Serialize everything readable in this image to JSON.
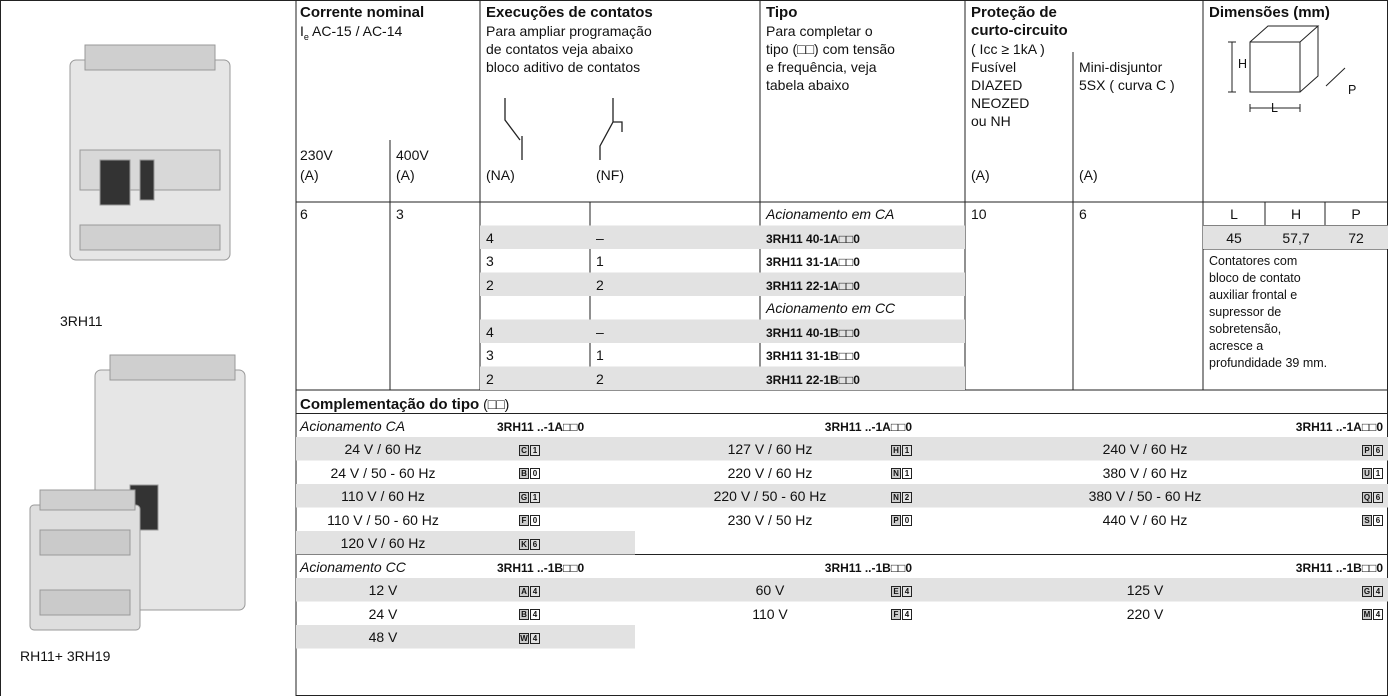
{
  "products": [
    {
      "caption": "3RH11"
    },
    {
      "caption": "RH11+ 3RH19"
    }
  ],
  "header": {
    "current": {
      "title": "Corrente nominal",
      "subtitle": {
        "symbol": "I",
        "subscript": "e",
        "text": " AC-15 / AC-14"
      },
      "col_230": "230V",
      "col_400": "400V",
      "unit_230": "(A)",
      "unit_400": "(A)"
    },
    "contacts": {
      "title": "Execuções de contatos",
      "note": [
        "Para ampliar programação",
        "de contatos veja abaixo",
        "bloco aditivo de contatos"
      ],
      "no": "(NA)",
      "nc": "(NF)"
    },
    "type": {
      "title": "Tipo",
      "note": [
        "Para completar o",
        "tipo (□□) com tensão",
        "e frequência, veja",
        "tabela abaixo"
      ]
    },
    "protection": {
      "title": [
        "Proteção de",
        "curto-circuito"
      ],
      "condition": "( Icc ≥ 1kA )",
      "fuse": [
        "Fusível",
        "DIAZED",
        "NEOZED",
        "ou NH"
      ],
      "breaker": [
        "Mini-disjuntor",
        "5SX ( curva C )"
      ],
      "fuse_unit": "(A)",
      "breaker_unit": "(A)"
    },
    "dimensions": {
      "title": "Dimensões (mm)",
      "diagram": {
        "h": "H",
        "l": "L",
        "p": "P"
      }
    }
  },
  "ratings": {
    "i_230": "6",
    "i_400": "3",
    "fuse": "10",
    "breaker": "6"
  },
  "contact_rows": [
    {
      "group": "Acionamento em CA"
    },
    {
      "na": "4",
      "nf": "–",
      "type": "3RH11 40-1A□□0"
    },
    {
      "na": "3",
      "nf": "1",
      "type": "3RH11 31-1A□□0"
    },
    {
      "na": "2",
      "nf": "2",
      "type": "3RH11 22-1A□□0"
    },
    {
      "group": "Acionamento em CC"
    },
    {
      "na": "4",
      "nf": "–",
      "type": "3RH11 40-1B□□0"
    },
    {
      "na": "3",
      "nf": "1",
      "type": "3RH11 31-1B□□0"
    },
    {
      "na": "2",
      "nf": "2",
      "type": "3RH11 22-1B□□0"
    }
  ],
  "dimensions": {
    "labels": [
      "L",
      "H",
      "P"
    ],
    "values": [
      "45",
      "57,7",
      "72"
    ],
    "note": [
      "Contatores com",
      "bloco de contato",
      "auxiliar frontal e",
      "supressor de",
      "sobretensão,",
      "acresce a",
      "profundidade 39 mm."
    ]
  },
  "complement": {
    "title": "Complementação do tipo",
    "suffix": " (□□)"
  },
  "voltage_groups": [
    {
      "label": "Acionamento CA",
      "code_header": [
        "3RH11 ..-1A□□0",
        "3RH11 ..-1A□□0",
        "3RH11 ..-1A□□0"
      ],
      "columns": [
        [
          {
            "voltage": "24 V / 60 Hz",
            "code": [
              "C",
              "1"
            ]
          },
          {
            "voltage": "24 V / 50 - 60 Hz",
            "code": [
              "B",
              "0"
            ]
          },
          {
            "voltage": "110 V / 60 Hz",
            "code": [
              "G",
              "1"
            ]
          },
          {
            "voltage": "110 V / 50 - 60 Hz",
            "code": [
              "F",
              "0"
            ]
          },
          {
            "voltage": "120 V / 60 Hz",
            "code": [
              "K",
              "6"
            ]
          }
        ],
        [
          {
            "voltage": "127 V / 60 Hz",
            "code": [
              "H",
              "1"
            ]
          },
          {
            "voltage": "220 V / 60 Hz",
            "code": [
              "N",
              "1"
            ]
          },
          {
            "voltage": "220 V / 50 - 60 Hz",
            "code": [
              "N",
              "2"
            ]
          },
          {
            "voltage": "230 V / 50 Hz",
            "code": [
              "P",
              "0"
            ]
          }
        ],
        [
          {
            "voltage": "240 V / 60 Hz",
            "code": [
              "P",
              "6"
            ]
          },
          {
            "voltage": "380 V / 60 Hz",
            "code": [
              "U",
              "1"
            ]
          },
          {
            "voltage": "380 V / 50 - 60 Hz",
            "code": [
              "Q",
              "6"
            ]
          },
          {
            "voltage": "440 V / 60 Hz",
            "code": [
              "S",
              "6"
            ]
          }
        ]
      ]
    },
    {
      "label": "Acionamento CC",
      "code_header": [
        "3RH11 ..-1B□□0",
        "3RH11 ..-1B□□0",
        "3RH11 ..-1B□□0"
      ],
      "columns": [
        [
          {
            "voltage": "12 V",
            "code": [
              "A",
              "4"
            ]
          },
          {
            "voltage": "24 V",
            "code": [
              "B",
              "4"
            ]
          },
          {
            "voltage": "48 V",
            "code": [
              "W",
              "4"
            ]
          }
        ],
        [
          {
            "voltage": "60 V",
            "code": [
              "E",
              "4"
            ]
          },
          {
            "voltage": "110 V",
            "code": [
              "F",
              "4"
            ]
          }
        ],
        [
          {
            "voltage": "125 V",
            "code": [
              "G",
              "4"
            ]
          },
          {
            "voltage": "220 V",
            "code": [
              "M",
              "4"
            ]
          }
        ]
      ]
    }
  ]
}
